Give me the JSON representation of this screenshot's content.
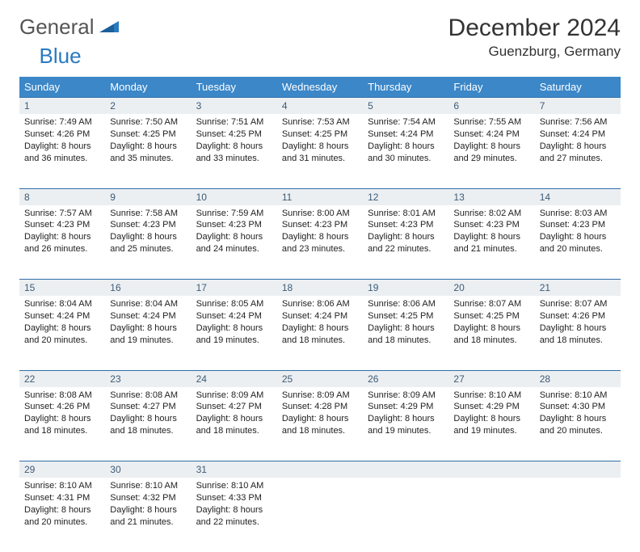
{
  "logo": {
    "text1": "General",
    "text2": "Blue"
  },
  "title": "December 2024",
  "subtitle": "Guenzburg, Germany",
  "colors": {
    "header_bg": "#3b87c8",
    "header_text": "#ffffff",
    "daynum_bg": "#eceff2",
    "daynum_text": "#3c5b76",
    "row_divider": "#2f6ea8",
    "body_text": "#222222",
    "logo_gray": "#555555",
    "logo_blue": "#2a7ac0",
    "background": "#ffffff"
  },
  "typography": {
    "title_fontsize": 30,
    "subtitle_fontsize": 17,
    "dayheader_fontsize": 13,
    "daynum_fontsize": 12,
    "cell_fontsize": 11,
    "logo_fontsize": 26
  },
  "day_headers": [
    "Sunday",
    "Monday",
    "Tuesday",
    "Wednesday",
    "Thursday",
    "Friday",
    "Saturday"
  ],
  "weeks": [
    [
      {
        "n": "1",
        "sr": "Sunrise: 7:49 AM",
        "ss": "Sunset: 4:26 PM",
        "d1": "Daylight: 8 hours",
        "d2": "and 36 minutes."
      },
      {
        "n": "2",
        "sr": "Sunrise: 7:50 AM",
        "ss": "Sunset: 4:25 PM",
        "d1": "Daylight: 8 hours",
        "d2": "and 35 minutes."
      },
      {
        "n": "3",
        "sr": "Sunrise: 7:51 AM",
        "ss": "Sunset: 4:25 PM",
        "d1": "Daylight: 8 hours",
        "d2": "and 33 minutes."
      },
      {
        "n": "4",
        "sr": "Sunrise: 7:53 AM",
        "ss": "Sunset: 4:25 PM",
        "d1": "Daylight: 8 hours",
        "d2": "and 31 minutes."
      },
      {
        "n": "5",
        "sr": "Sunrise: 7:54 AM",
        "ss": "Sunset: 4:24 PM",
        "d1": "Daylight: 8 hours",
        "d2": "and 30 minutes."
      },
      {
        "n": "6",
        "sr": "Sunrise: 7:55 AM",
        "ss": "Sunset: 4:24 PM",
        "d1": "Daylight: 8 hours",
        "d2": "and 29 minutes."
      },
      {
        "n": "7",
        "sr": "Sunrise: 7:56 AM",
        "ss": "Sunset: 4:24 PM",
        "d1": "Daylight: 8 hours",
        "d2": "and 27 minutes."
      }
    ],
    [
      {
        "n": "8",
        "sr": "Sunrise: 7:57 AM",
        "ss": "Sunset: 4:23 PM",
        "d1": "Daylight: 8 hours",
        "d2": "and 26 minutes."
      },
      {
        "n": "9",
        "sr": "Sunrise: 7:58 AM",
        "ss": "Sunset: 4:23 PM",
        "d1": "Daylight: 8 hours",
        "d2": "and 25 minutes."
      },
      {
        "n": "10",
        "sr": "Sunrise: 7:59 AM",
        "ss": "Sunset: 4:23 PM",
        "d1": "Daylight: 8 hours",
        "d2": "and 24 minutes."
      },
      {
        "n": "11",
        "sr": "Sunrise: 8:00 AM",
        "ss": "Sunset: 4:23 PM",
        "d1": "Daylight: 8 hours",
        "d2": "and 23 minutes."
      },
      {
        "n": "12",
        "sr": "Sunrise: 8:01 AM",
        "ss": "Sunset: 4:23 PM",
        "d1": "Daylight: 8 hours",
        "d2": "and 22 minutes."
      },
      {
        "n": "13",
        "sr": "Sunrise: 8:02 AM",
        "ss": "Sunset: 4:23 PM",
        "d1": "Daylight: 8 hours",
        "d2": "and 21 minutes."
      },
      {
        "n": "14",
        "sr": "Sunrise: 8:03 AM",
        "ss": "Sunset: 4:23 PM",
        "d1": "Daylight: 8 hours",
        "d2": "and 20 minutes."
      }
    ],
    [
      {
        "n": "15",
        "sr": "Sunrise: 8:04 AM",
        "ss": "Sunset: 4:24 PM",
        "d1": "Daylight: 8 hours",
        "d2": "and 20 minutes."
      },
      {
        "n": "16",
        "sr": "Sunrise: 8:04 AM",
        "ss": "Sunset: 4:24 PM",
        "d1": "Daylight: 8 hours",
        "d2": "and 19 minutes."
      },
      {
        "n": "17",
        "sr": "Sunrise: 8:05 AM",
        "ss": "Sunset: 4:24 PM",
        "d1": "Daylight: 8 hours",
        "d2": "and 19 minutes."
      },
      {
        "n": "18",
        "sr": "Sunrise: 8:06 AM",
        "ss": "Sunset: 4:24 PM",
        "d1": "Daylight: 8 hours",
        "d2": "and 18 minutes."
      },
      {
        "n": "19",
        "sr": "Sunrise: 8:06 AM",
        "ss": "Sunset: 4:25 PM",
        "d1": "Daylight: 8 hours",
        "d2": "and 18 minutes."
      },
      {
        "n": "20",
        "sr": "Sunrise: 8:07 AM",
        "ss": "Sunset: 4:25 PM",
        "d1": "Daylight: 8 hours",
        "d2": "and 18 minutes."
      },
      {
        "n": "21",
        "sr": "Sunrise: 8:07 AM",
        "ss": "Sunset: 4:26 PM",
        "d1": "Daylight: 8 hours",
        "d2": "and 18 minutes."
      }
    ],
    [
      {
        "n": "22",
        "sr": "Sunrise: 8:08 AM",
        "ss": "Sunset: 4:26 PM",
        "d1": "Daylight: 8 hours",
        "d2": "and 18 minutes."
      },
      {
        "n": "23",
        "sr": "Sunrise: 8:08 AM",
        "ss": "Sunset: 4:27 PM",
        "d1": "Daylight: 8 hours",
        "d2": "and 18 minutes."
      },
      {
        "n": "24",
        "sr": "Sunrise: 8:09 AM",
        "ss": "Sunset: 4:27 PM",
        "d1": "Daylight: 8 hours",
        "d2": "and 18 minutes."
      },
      {
        "n": "25",
        "sr": "Sunrise: 8:09 AM",
        "ss": "Sunset: 4:28 PM",
        "d1": "Daylight: 8 hours",
        "d2": "and 18 minutes."
      },
      {
        "n": "26",
        "sr": "Sunrise: 8:09 AM",
        "ss": "Sunset: 4:29 PM",
        "d1": "Daylight: 8 hours",
        "d2": "and 19 minutes."
      },
      {
        "n": "27",
        "sr": "Sunrise: 8:10 AM",
        "ss": "Sunset: 4:29 PM",
        "d1": "Daylight: 8 hours",
        "d2": "and 19 minutes."
      },
      {
        "n": "28",
        "sr": "Sunrise: 8:10 AM",
        "ss": "Sunset: 4:30 PM",
        "d1": "Daylight: 8 hours",
        "d2": "and 20 minutes."
      }
    ],
    [
      {
        "n": "29",
        "sr": "Sunrise: 8:10 AM",
        "ss": "Sunset: 4:31 PM",
        "d1": "Daylight: 8 hours",
        "d2": "and 20 minutes."
      },
      {
        "n": "30",
        "sr": "Sunrise: 8:10 AM",
        "ss": "Sunset: 4:32 PM",
        "d1": "Daylight: 8 hours",
        "d2": "and 21 minutes."
      },
      {
        "n": "31",
        "sr": "Sunrise: 8:10 AM",
        "ss": "Sunset: 4:33 PM",
        "d1": "Daylight: 8 hours",
        "d2": "and 22 minutes."
      },
      null,
      null,
      null,
      null
    ]
  ]
}
